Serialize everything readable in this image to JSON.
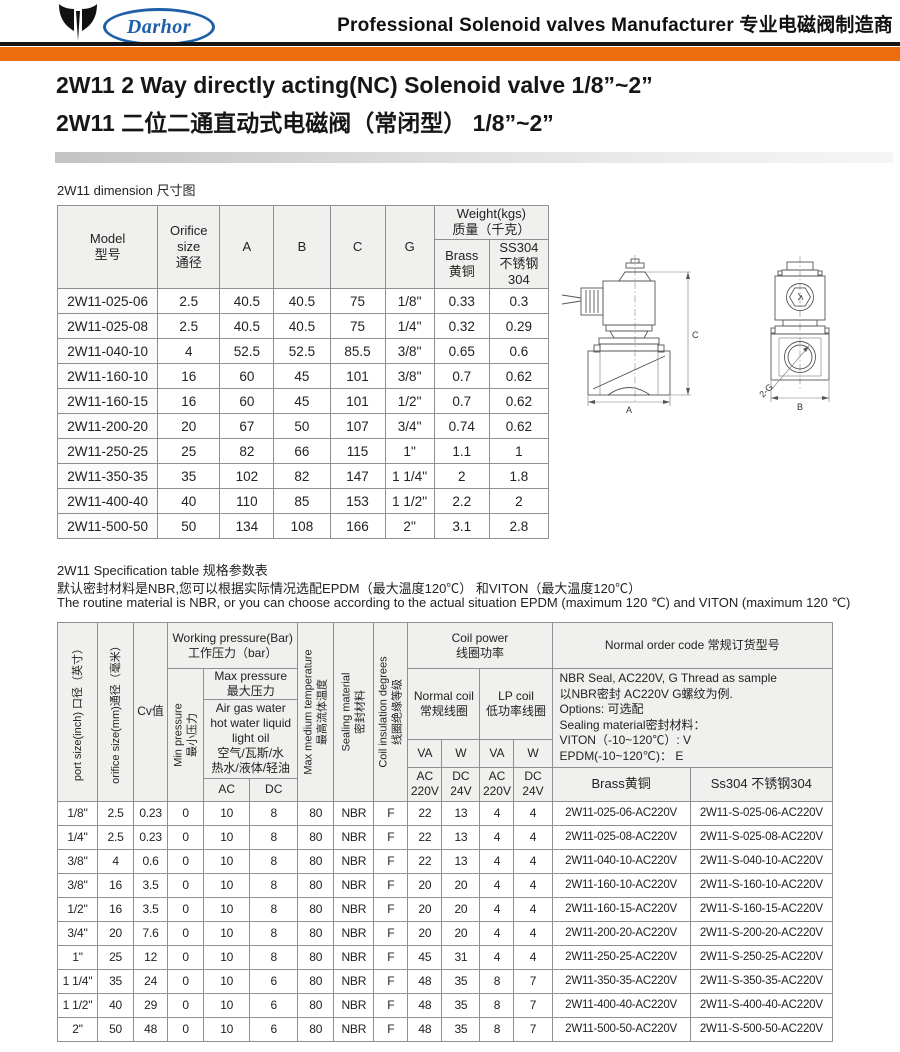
{
  "header": {
    "brand": "Darhor",
    "tagline": "Professional Solenoid valves Manufacturer 专业电磁阀制造商"
  },
  "title": {
    "en": "2W11 2 Way directly acting(NC) Solenoid valve 1/8”~2”",
    "cn": "2W11 二位二通直动式电磁阀（常闭型） 1/8”~2”"
  },
  "dim": {
    "caption": "2W11 dimension 尺寸图",
    "headers": {
      "model": "Model\n型号",
      "orifice": "Orifice\nsize\n通径",
      "a": "A",
      "b": "B",
      "c": "C",
      "g": "G",
      "weight": "Weight(kgs)\n质量（千克）",
      "brass": "Brass\n黄铜",
      "ss304": "SS304\n不锈钢304"
    },
    "rows": [
      [
        "2W11-025-06",
        "2.5",
        "40.5",
        "40.5",
        "75",
        "1/8''",
        "0.33",
        "0.3"
      ],
      [
        "2W11-025-08",
        "2.5",
        "40.5",
        "40.5",
        "75",
        "1/4''",
        "0.32",
        "0.29"
      ],
      [
        "2W11-040-10",
        "4",
        "52.5",
        "52.5",
        "85.5",
        "3/8''",
        "0.65",
        "0.6"
      ],
      [
        "2W11-160-10",
        "16",
        "60",
        "45",
        "101",
        "3/8''",
        "0.7",
        "0.62"
      ],
      [
        "2W11-160-15",
        "16",
        "60",
        "45",
        "101",
        "1/2''",
        "0.7",
        "0.62"
      ],
      [
        "2W11-200-20",
        "20",
        "67",
        "50",
        "107",
        "3/4''",
        "0.74",
        "0.62"
      ],
      [
        "2W11-250-25",
        "25",
        "82",
        "66",
        "115",
        "1''",
        "1.1",
        "1"
      ],
      [
        "2W11-350-35",
        "35",
        "102",
        "82",
        "147",
        "1 1/4''",
        "2",
        "1.8"
      ],
      [
        "2W11-400-40",
        "40",
        "110",
        "85",
        "153",
        "1 1/2''",
        "2.2",
        "2"
      ],
      [
        "2W11-500-50",
        "50",
        "134",
        "108",
        "166",
        "2''",
        "3.1",
        "2.8"
      ]
    ]
  },
  "drawing": {
    "dim_a": "A",
    "dim_b": "B",
    "dim_c": "C",
    "port_label": "2-G"
  },
  "spec": {
    "caption": "2W11 Specification table 规格参数表",
    "note_cn": "默认密封材料是NBR,您可以根据实际情况选配EPDM（最大温度120℃） 和VITON（最大温度120℃）",
    "note_en": "The routine material is NBR, or you can choose according to the actual situation EPDM (maximum 120 ℃) and VITON (maximum 120 ℃)",
    "headers": {
      "port": "port size(inch) 口径（英寸）",
      "orifice": "orifice size(mm)通径（毫米）",
      "cv": "Cv值",
      "working_pressure": "Working pressure(Bar)\n工作压力（bar）",
      "min_pressure": "Min pressure\n最小压力",
      "max_pressure": "Max pressure\n最大压力",
      "media": "Air gas water\nhot water liquid\nlight oil\n空气/瓦斯/水\n热水/液体/轻油",
      "ac": "AC",
      "dc": "DC",
      "temp": "Max medium temperature\n最高流体温度",
      "seal": "Sealing material\n密封材料",
      "insulation": "Coil insulation degrees\n线圈绝缘等级",
      "coil_power": "Coil power\n线圈功率",
      "normal_coil": "Normal coil\n常规线圈",
      "lp_coil": "LP coil\n低功率线圈",
      "va1": "VA",
      "w1": "W",
      "va2": "VA",
      "w2": "W",
      "ac220_1": "AC\n220V",
      "dc24_1": "DC\n24V",
      "ac220_2": "AC\n220V",
      "dc24_2": "DC\n24V",
      "order_code": "Normal order code 常规订货型号",
      "order_note": "NBR Seal, AC220V, G Thread as sample\n以NBR密封  AC220V  G螺纹为例.\nOptions: 可选配\nSealing material密封材料：\nVITON（-10~120℃）: V\nEPDM(-10~120℃)： E",
      "brass": "Brass黄铜",
      "ss304": "Ss304 不锈钢304"
    },
    "rows": [
      [
        "1/8''",
        "2.5",
        "0.23",
        "0",
        "10",
        "8",
        "80",
        "NBR",
        "F",
        "22",
        "13",
        "4",
        "4",
        "2W11-025-06-AC220V",
        "2W11-S-025-06-AC220V"
      ],
      [
        "1/4''",
        "2.5",
        "0.23",
        "0",
        "10",
        "8",
        "80",
        "NBR",
        "F",
        "22",
        "13",
        "4",
        "4",
        "2W11-025-08-AC220V",
        "2W11-S-025-08-AC220V"
      ],
      [
        "3/8''",
        "4",
        "0.6",
        "0",
        "10",
        "8",
        "80",
        "NBR",
        "F",
        "22",
        "13",
        "4",
        "4",
        "2W11-040-10-AC220V",
        "2W11-S-040-10-AC220V"
      ],
      [
        "3/8''",
        "16",
        "3.5",
        "0",
        "10",
        "8",
        "80",
        "NBR",
        "F",
        "20",
        "20",
        "4",
        "4",
        "2W11-160-10-AC220V",
        "2W11-S-160-10-AC220V"
      ],
      [
        "1/2''",
        "16",
        "3.5",
        "0",
        "10",
        "8",
        "80",
        "NBR",
        "F",
        "20",
        "20",
        "4",
        "4",
        "2W11-160-15-AC220V",
        "2W11-S-160-15-AC220V"
      ],
      [
        "3/4''",
        "20",
        "7.6",
        "0",
        "10",
        "8",
        "80",
        "NBR",
        "F",
        "20",
        "20",
        "4",
        "4",
        "2W11-200-20-AC220V",
        "2W11-S-200-20-AC220V"
      ],
      [
        "1''",
        "25",
        "12",
        "0",
        "10",
        "8",
        "80",
        "NBR",
        "F",
        "45",
        "31",
        "4",
        "4",
        "2W11-250-25-AC220V",
        "2W11-S-250-25-AC220V"
      ],
      [
        "1 1/4''",
        "35",
        "24",
        "0",
        "10",
        "6",
        "80",
        "NBR",
        "F",
        "48",
        "35",
        "8",
        "7",
        "2W11-350-35-AC220V",
        "2W11-S-350-35-AC220V"
      ],
      [
        "1 1/2''",
        "40",
        "29",
        "0",
        "10",
        "6",
        "80",
        "NBR",
        "F",
        "48",
        "35",
        "8",
        "7",
        "2W11-400-40-AC220V",
        "2W11-S-400-40-AC220V"
      ],
      [
        "2''",
        "50",
        "48",
        "0",
        "10",
        "6",
        "80",
        "NBR",
        "F",
        "48",
        "35",
        "8",
        "7",
        "2W11-500-50-AC220V",
        "2W11-S-500-50-AC220V"
      ]
    ]
  },
  "colors": {
    "accent_orange": "#ed6c0c",
    "brand_blue": "#1d5fa8",
    "table_border": "#8f8f8f",
    "header_bg": "#f0f0ee"
  }
}
